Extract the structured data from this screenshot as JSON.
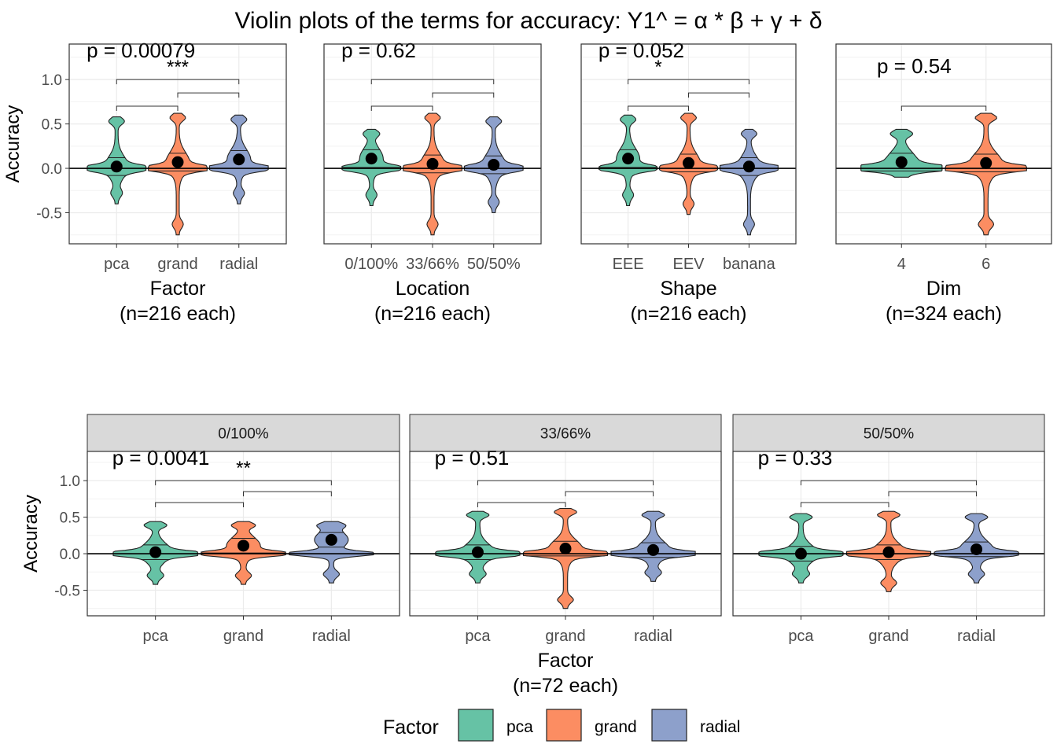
{
  "title": "Violin plots of the terms for accuracy: Y1^ = α * β + γ + δ",
  "colors": {
    "pca": "#66C2A5",
    "grand": "#FC8D62",
    "radial": "#8DA0CB"
  },
  "legend": {
    "title": "Factor",
    "position": "bottom",
    "items": [
      {
        "label": "pca",
        "color": "#66C2A5"
      },
      {
        "label": "grand",
        "color": "#FC8D62"
      },
      {
        "label": "radial",
        "color": "#8DA0CB"
      }
    ]
  },
  "chart_data": [
    {
      "type": "violin",
      "ylabel": "Accuracy",
      "ylim": [
        -0.85,
        1.4
      ],
      "yticks": [
        "1.0",
        "0.5",
        "0.0",
        "-0.5"
      ],
      "xlabel": "Factor",
      "xlabel_sub": "(n=216 each)",
      "categories": [
        "pca",
        "grand",
        "radial"
      ],
      "means": [
        0.02,
        0.07,
        0.1
      ],
      "ranges": [
        [
          -0.4,
          0.58
        ],
        [
          -0.75,
          0.62
        ],
        [
          -0.4,
          0.6
        ]
      ],
      "p_value": "p = 0.00079",
      "significance": "***"
    },
    {
      "type": "violin",
      "ylim": [
        -0.85,
        1.4
      ],
      "xlabel": "Location",
      "xlabel_sub": "(n=216 each)",
      "categories": [
        "0/100%",
        "33/66%",
        "50/50%"
      ],
      "means": [
        0.11,
        0.05,
        0.04
      ],
      "ranges": [
        [
          -0.42,
          0.44
        ],
        [
          -0.75,
          0.62
        ],
        [
          -0.5,
          0.58
        ]
      ],
      "p_value": "p = 0.62",
      "significance": ""
    },
    {
      "type": "violin",
      "ylim": [
        -0.85,
        1.4
      ],
      "xlabel": "Shape",
      "xlabel_sub": "(n=216 each)",
      "categories": [
        "EEE",
        "EEV",
        "banana"
      ],
      "means": [
        0.11,
        0.06,
        0.02
      ],
      "ranges": [
        [
          -0.42,
          0.6
        ],
        [
          -0.52,
          0.62
        ],
        [
          -0.75,
          0.44
        ]
      ],
      "p_value": "p = 0.052",
      "significance": "*"
    },
    {
      "type": "violin",
      "ylim": [
        -0.85,
        1.4
      ],
      "xlabel": "Dim",
      "xlabel_sub": "(n=324 each)",
      "categories": [
        "4",
        "6"
      ],
      "means": [
        0.07,
        0.06
      ],
      "ranges": [
        [
          -0.1,
          0.44
        ],
        [
          -0.75,
          0.62
        ]
      ],
      "p_value": "p = 0.54",
      "significance": ""
    },
    {
      "type": "violin",
      "ylabel": "Accuracy",
      "ylim": [
        -0.85,
        1.4
      ],
      "yticks": [
        "1.0",
        "0.5",
        "0.0",
        "-0.5"
      ],
      "facet": "0/100%",
      "categories": [
        "pca",
        "grand",
        "radial"
      ],
      "means": [
        0.02,
        0.11,
        0.19
      ],
      "ranges": [
        [
          -0.42,
          0.44
        ],
        [
          -0.42,
          0.44
        ],
        [
          -0.4,
          0.44
        ]
      ],
      "p_value": "p = 0.0041",
      "significance": "**"
    },
    {
      "type": "violin",
      "ylim": [
        -0.85,
        1.4
      ],
      "facet": "33/66%",
      "xlabel": "Factor",
      "xlabel_sub": "(n=72 each)",
      "categories": [
        "pca",
        "grand",
        "radial"
      ],
      "means": [
        0.02,
        0.07,
        0.05
      ],
      "ranges": [
        [
          -0.4,
          0.58
        ],
        [
          -0.75,
          0.62
        ],
        [
          -0.38,
          0.58
        ]
      ],
      "p_value": "p = 0.51",
      "significance": ""
    },
    {
      "type": "violin",
      "ylim": [
        -0.85,
        1.4
      ],
      "facet": "50/50%",
      "categories": [
        "pca",
        "grand",
        "radial"
      ],
      "means": [
        0.0,
        0.02,
        0.06
      ],
      "ranges": [
        [
          -0.4,
          0.55
        ],
        [
          -0.52,
          0.58
        ],
        [
          -0.4,
          0.55
        ]
      ],
      "p_value": "p = 0.33",
      "significance": ""
    }
  ]
}
